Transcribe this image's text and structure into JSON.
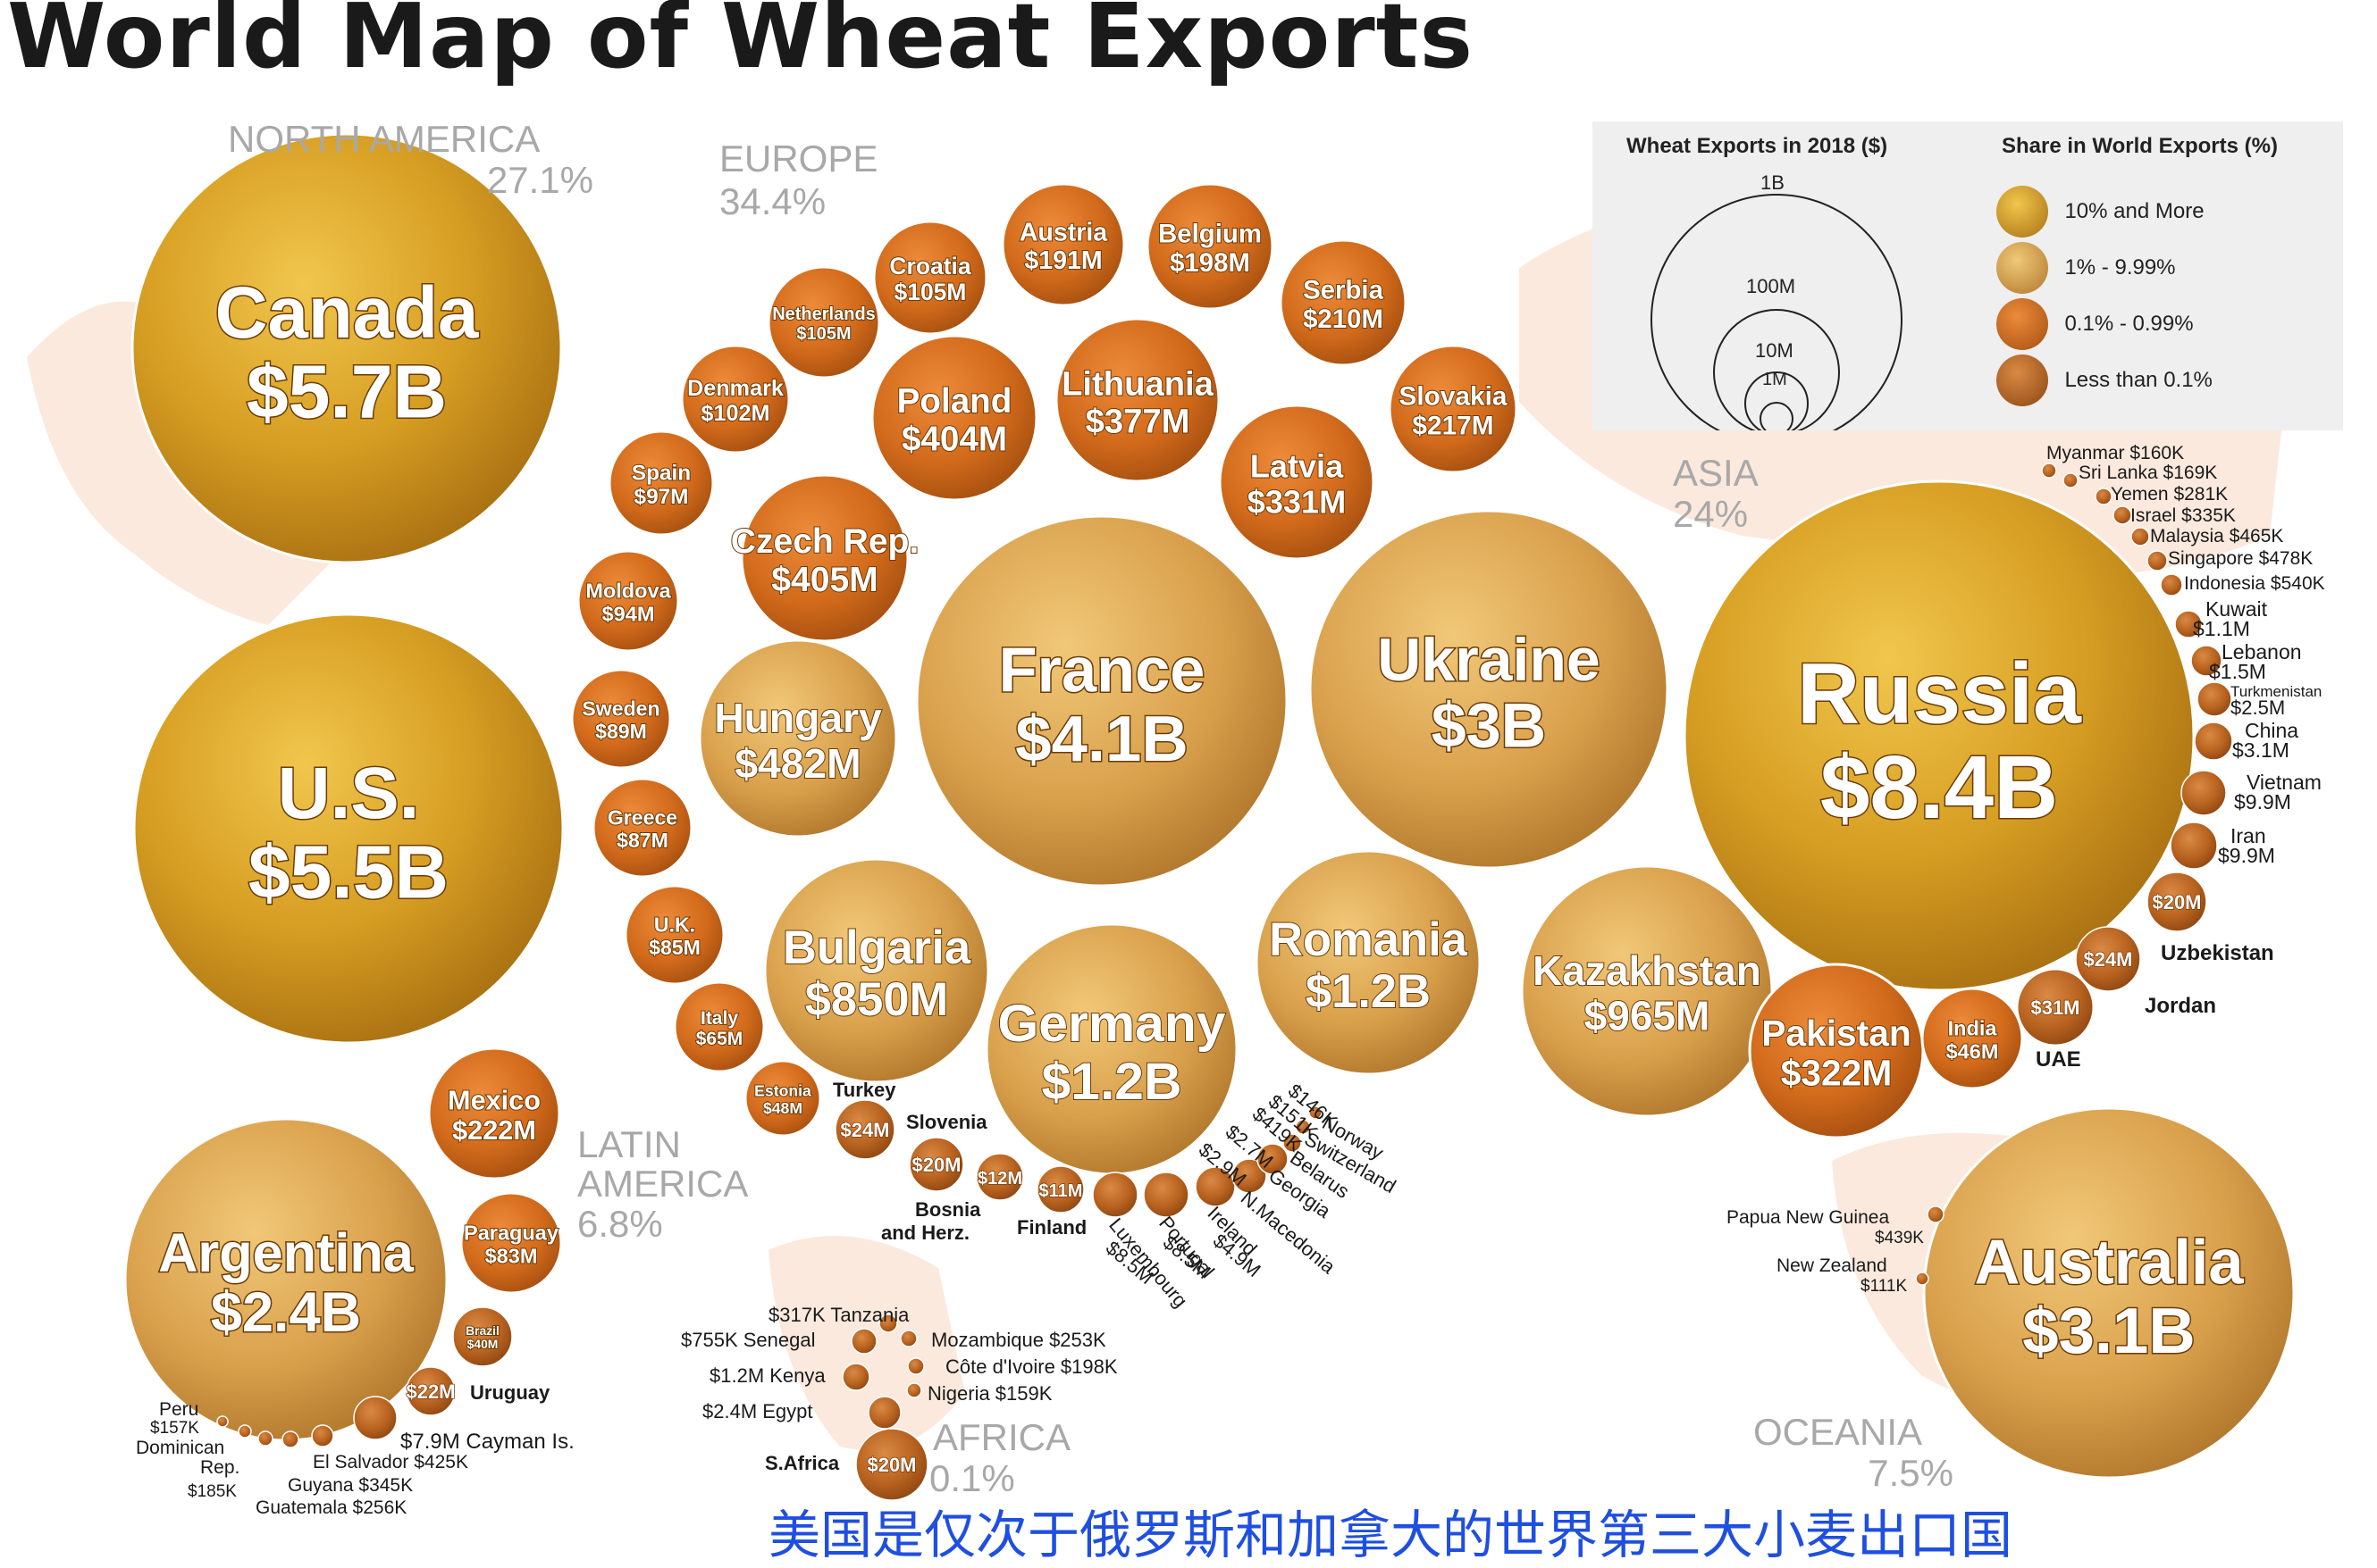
{
  "title": "World Map of Wheat Exports",
  "caption": "美国是仅次于俄罗斯和加拿大的世界第三大小麦出口国",
  "legend": {
    "size_title": "Wheat Exports in 2018 ($)",
    "size_labels": [
      "1B",
      "100M",
      "10M",
      "1M"
    ],
    "share_title": "Share in World Exports (%)",
    "share_items": [
      {
        "label": "10% and More",
        "color": "#d9a420"
      },
      {
        "label": "1% - 9.99%",
        "color": "#e2a347"
      },
      {
        "label": "0.1% - 0.99%",
        "color": "#d9701e"
      },
      {
        "label": "Less than 0.1%",
        "color": "#b8601c"
      }
    ]
  },
  "chart_data": {
    "type": "bubble",
    "title": "World Map of Wheat Exports",
    "regions": [
      {
        "name": "NORTH AMERICA",
        "share": "27.1%"
      },
      {
        "name": "EUROPE",
        "share": "34.4%"
      },
      {
        "name": "ASIA",
        "share": "24%"
      },
      {
        "name": "LATIN AMERICA",
        "share": "6.8%"
      },
      {
        "name": "AFRICA",
        "share": "0.1%"
      },
      {
        "name": "OCEANIA",
        "share": "7.5%"
      }
    ],
    "series": [
      {
        "name": "Canada",
        "value": "$5.7B",
        "region": "NORTH AMERICA"
      },
      {
        "name": "U.S.",
        "value": "$5.5B",
        "region": "NORTH AMERICA"
      },
      {
        "name": "Mexico",
        "value": "$222M",
        "region": "LATIN AMERICA"
      },
      {
        "name": "Argentina",
        "value": "$2.4B",
        "region": "LATIN AMERICA"
      },
      {
        "name": "Paraguay",
        "value": "$83M",
        "region": "LATIN AMERICA"
      },
      {
        "name": "Brazil",
        "value": "$40M",
        "region": "LATIN AMERICA"
      },
      {
        "name": "Uruguay",
        "value": "$22M",
        "region": "LATIN AMERICA"
      },
      {
        "name": "Cayman Is.",
        "value": "$7.9M",
        "region": "LATIN AMERICA"
      },
      {
        "name": "Peru",
        "value": "$157K",
        "region": "LATIN AMERICA"
      },
      {
        "name": "Dominican Rep.",
        "value": "$185K",
        "region": "LATIN AMERICA"
      },
      {
        "name": "El Salvador",
        "value": "$425K",
        "region": "LATIN AMERICA"
      },
      {
        "name": "Guyana",
        "value": "$345K",
        "region": "LATIN AMERICA"
      },
      {
        "name": "Guatemala",
        "value": "$256K",
        "region": "LATIN AMERICA"
      },
      {
        "name": "France",
        "value": "$4.1B",
        "region": "EUROPE"
      },
      {
        "name": "Ukraine",
        "value": "$3B",
        "region": "EUROPE"
      },
      {
        "name": "Germany",
        "value": "$1.2B",
        "region": "EUROPE"
      },
      {
        "name": "Romania",
        "value": "$1.2B",
        "region": "EUROPE"
      },
      {
        "name": "Bulgaria",
        "value": "$850M",
        "region": "EUROPE"
      },
      {
        "name": "Hungary",
        "value": "$482M",
        "region": "EUROPE"
      },
      {
        "name": "Czech Rep.",
        "value": "$405M",
        "region": "EUROPE"
      },
      {
        "name": "Poland",
        "value": "$404M",
        "region": "EUROPE"
      },
      {
        "name": "Lithuania",
        "value": "$377M",
        "region": "EUROPE"
      },
      {
        "name": "Latvia",
        "value": "$331M",
        "region": "EUROPE"
      },
      {
        "name": "Slovakia",
        "value": "$217M",
        "region": "EUROPE"
      },
      {
        "name": "Serbia",
        "value": "$210M",
        "region": "EUROPE"
      },
      {
        "name": "Belgium",
        "value": "$198M",
        "region": "EUROPE"
      },
      {
        "name": "Austria",
        "value": "$191M",
        "region": "EUROPE"
      },
      {
        "name": "Croatia",
        "value": "$105M",
        "region": "EUROPE"
      },
      {
        "name": "Netherlands",
        "value": "$105M",
        "region": "EUROPE"
      },
      {
        "name": "Denmark",
        "value": "$102M",
        "region": "EUROPE"
      },
      {
        "name": "Spain",
        "value": "$97M",
        "region": "EUROPE"
      },
      {
        "name": "Moldova",
        "value": "$94M",
        "region": "EUROPE"
      },
      {
        "name": "Sweden",
        "value": "$89M",
        "region": "EUROPE"
      },
      {
        "name": "Greece",
        "value": "$87M",
        "region": "EUROPE"
      },
      {
        "name": "U.K.",
        "value": "$85M",
        "region": "EUROPE"
      },
      {
        "name": "Italy",
        "value": "$65M",
        "region": "EUROPE"
      },
      {
        "name": "Estonia",
        "value": "$48M",
        "region": "EUROPE"
      },
      {
        "name": "Turkey",
        "value": "$24M",
        "region": "EUROPE"
      },
      {
        "name": "Slovenia",
        "value": "$20M",
        "region": "EUROPE"
      },
      {
        "name": "Bosnia and Herz.",
        "value": "$12M",
        "region": "EUROPE"
      },
      {
        "name": "Finland",
        "value": "$11M",
        "region": "EUROPE"
      },
      {
        "name": "Luxembourg",
        "value": "$8.5M",
        "region": "EUROPE"
      },
      {
        "name": "Portugal",
        "value": "$8.5M",
        "region": "EUROPE"
      },
      {
        "name": "Ireland",
        "value": "$4.9M",
        "region": "EUROPE"
      },
      {
        "name": "N.Macedonia",
        "value": "$2.9M",
        "region": "EUROPE"
      },
      {
        "name": "Georgia",
        "value": "$2.7M",
        "region": "EUROPE"
      },
      {
        "name": "Belarus",
        "value": "$419K",
        "region": "EUROPE"
      },
      {
        "name": "Switzerland",
        "value": "$151K",
        "region": "EUROPE"
      },
      {
        "name": "Norway",
        "value": "$146K",
        "region": "EUROPE"
      },
      {
        "name": "Russia",
        "value": "$8.4B",
        "region": "ASIA"
      },
      {
        "name": "Kazakhstan",
        "value": "$965M",
        "region": "ASIA"
      },
      {
        "name": "Pakistan",
        "value": "$322M",
        "region": "ASIA"
      },
      {
        "name": "India",
        "value": "$46M",
        "region": "ASIA"
      },
      {
        "name": "UAE",
        "value": "$31M",
        "region": "ASIA"
      },
      {
        "name": "Jordan",
        "value": "$24M",
        "region": "ASIA"
      },
      {
        "name": "Uzbekistan",
        "value": "$20M",
        "region": "ASIA"
      },
      {
        "name": "Iran",
        "value": "$9.9M",
        "region": "ASIA"
      },
      {
        "name": "Vietnam",
        "value": "$9.9M",
        "region": "ASIA"
      },
      {
        "name": "China",
        "value": "$3.1M",
        "region": "ASIA"
      },
      {
        "name": "Turkmenistan",
        "value": "$2.5M",
        "region": "ASIA"
      },
      {
        "name": "Lebanon",
        "value": "$1.5M",
        "region": "ASIA"
      },
      {
        "name": "Kuwait",
        "value": "$1.1M",
        "region": "ASIA"
      },
      {
        "name": "Indonesia",
        "value": "$540K",
        "region": "ASIA"
      },
      {
        "name": "Singapore",
        "value": "$478K",
        "region": "ASIA"
      },
      {
        "name": "Malaysia",
        "value": "$465K",
        "region": "ASIA"
      },
      {
        "name": "Israel",
        "value": "$335K",
        "region": "ASIA"
      },
      {
        "name": "Yemen",
        "value": "$281K",
        "region": "ASIA"
      },
      {
        "name": "Sri Lanka",
        "value": "$169K",
        "region": "ASIA"
      },
      {
        "name": "Myanmar",
        "value": "$160K",
        "region": "ASIA"
      },
      {
        "name": "Australia",
        "value": "$3.1B",
        "region": "OCEANIA"
      },
      {
        "name": "Papua New Guinea",
        "value": "$439K",
        "region": "OCEANIA"
      },
      {
        "name": "New Zealand",
        "value": "$111K",
        "region": "OCEANIA"
      },
      {
        "name": "S.Africa",
        "value": "$20M",
        "region": "AFRICA"
      },
      {
        "name": "Egypt",
        "value": "$2.4M",
        "region": "AFRICA"
      },
      {
        "name": "Kenya",
        "value": "$1.2M",
        "region": "AFRICA"
      },
      {
        "name": "Senegal",
        "value": "$755K",
        "region": "AFRICA"
      },
      {
        "name": "Tanzania",
        "value": "$317K",
        "region": "AFRICA"
      },
      {
        "name": "Mozambique",
        "value": "$253K",
        "region": "AFRICA"
      },
      {
        "name": "Côte d'Ivoire",
        "value": "$198K",
        "region": "AFRICA"
      },
      {
        "name": "Nigeria",
        "value": "$159K",
        "region": "AFRICA"
      }
    ]
  }
}
